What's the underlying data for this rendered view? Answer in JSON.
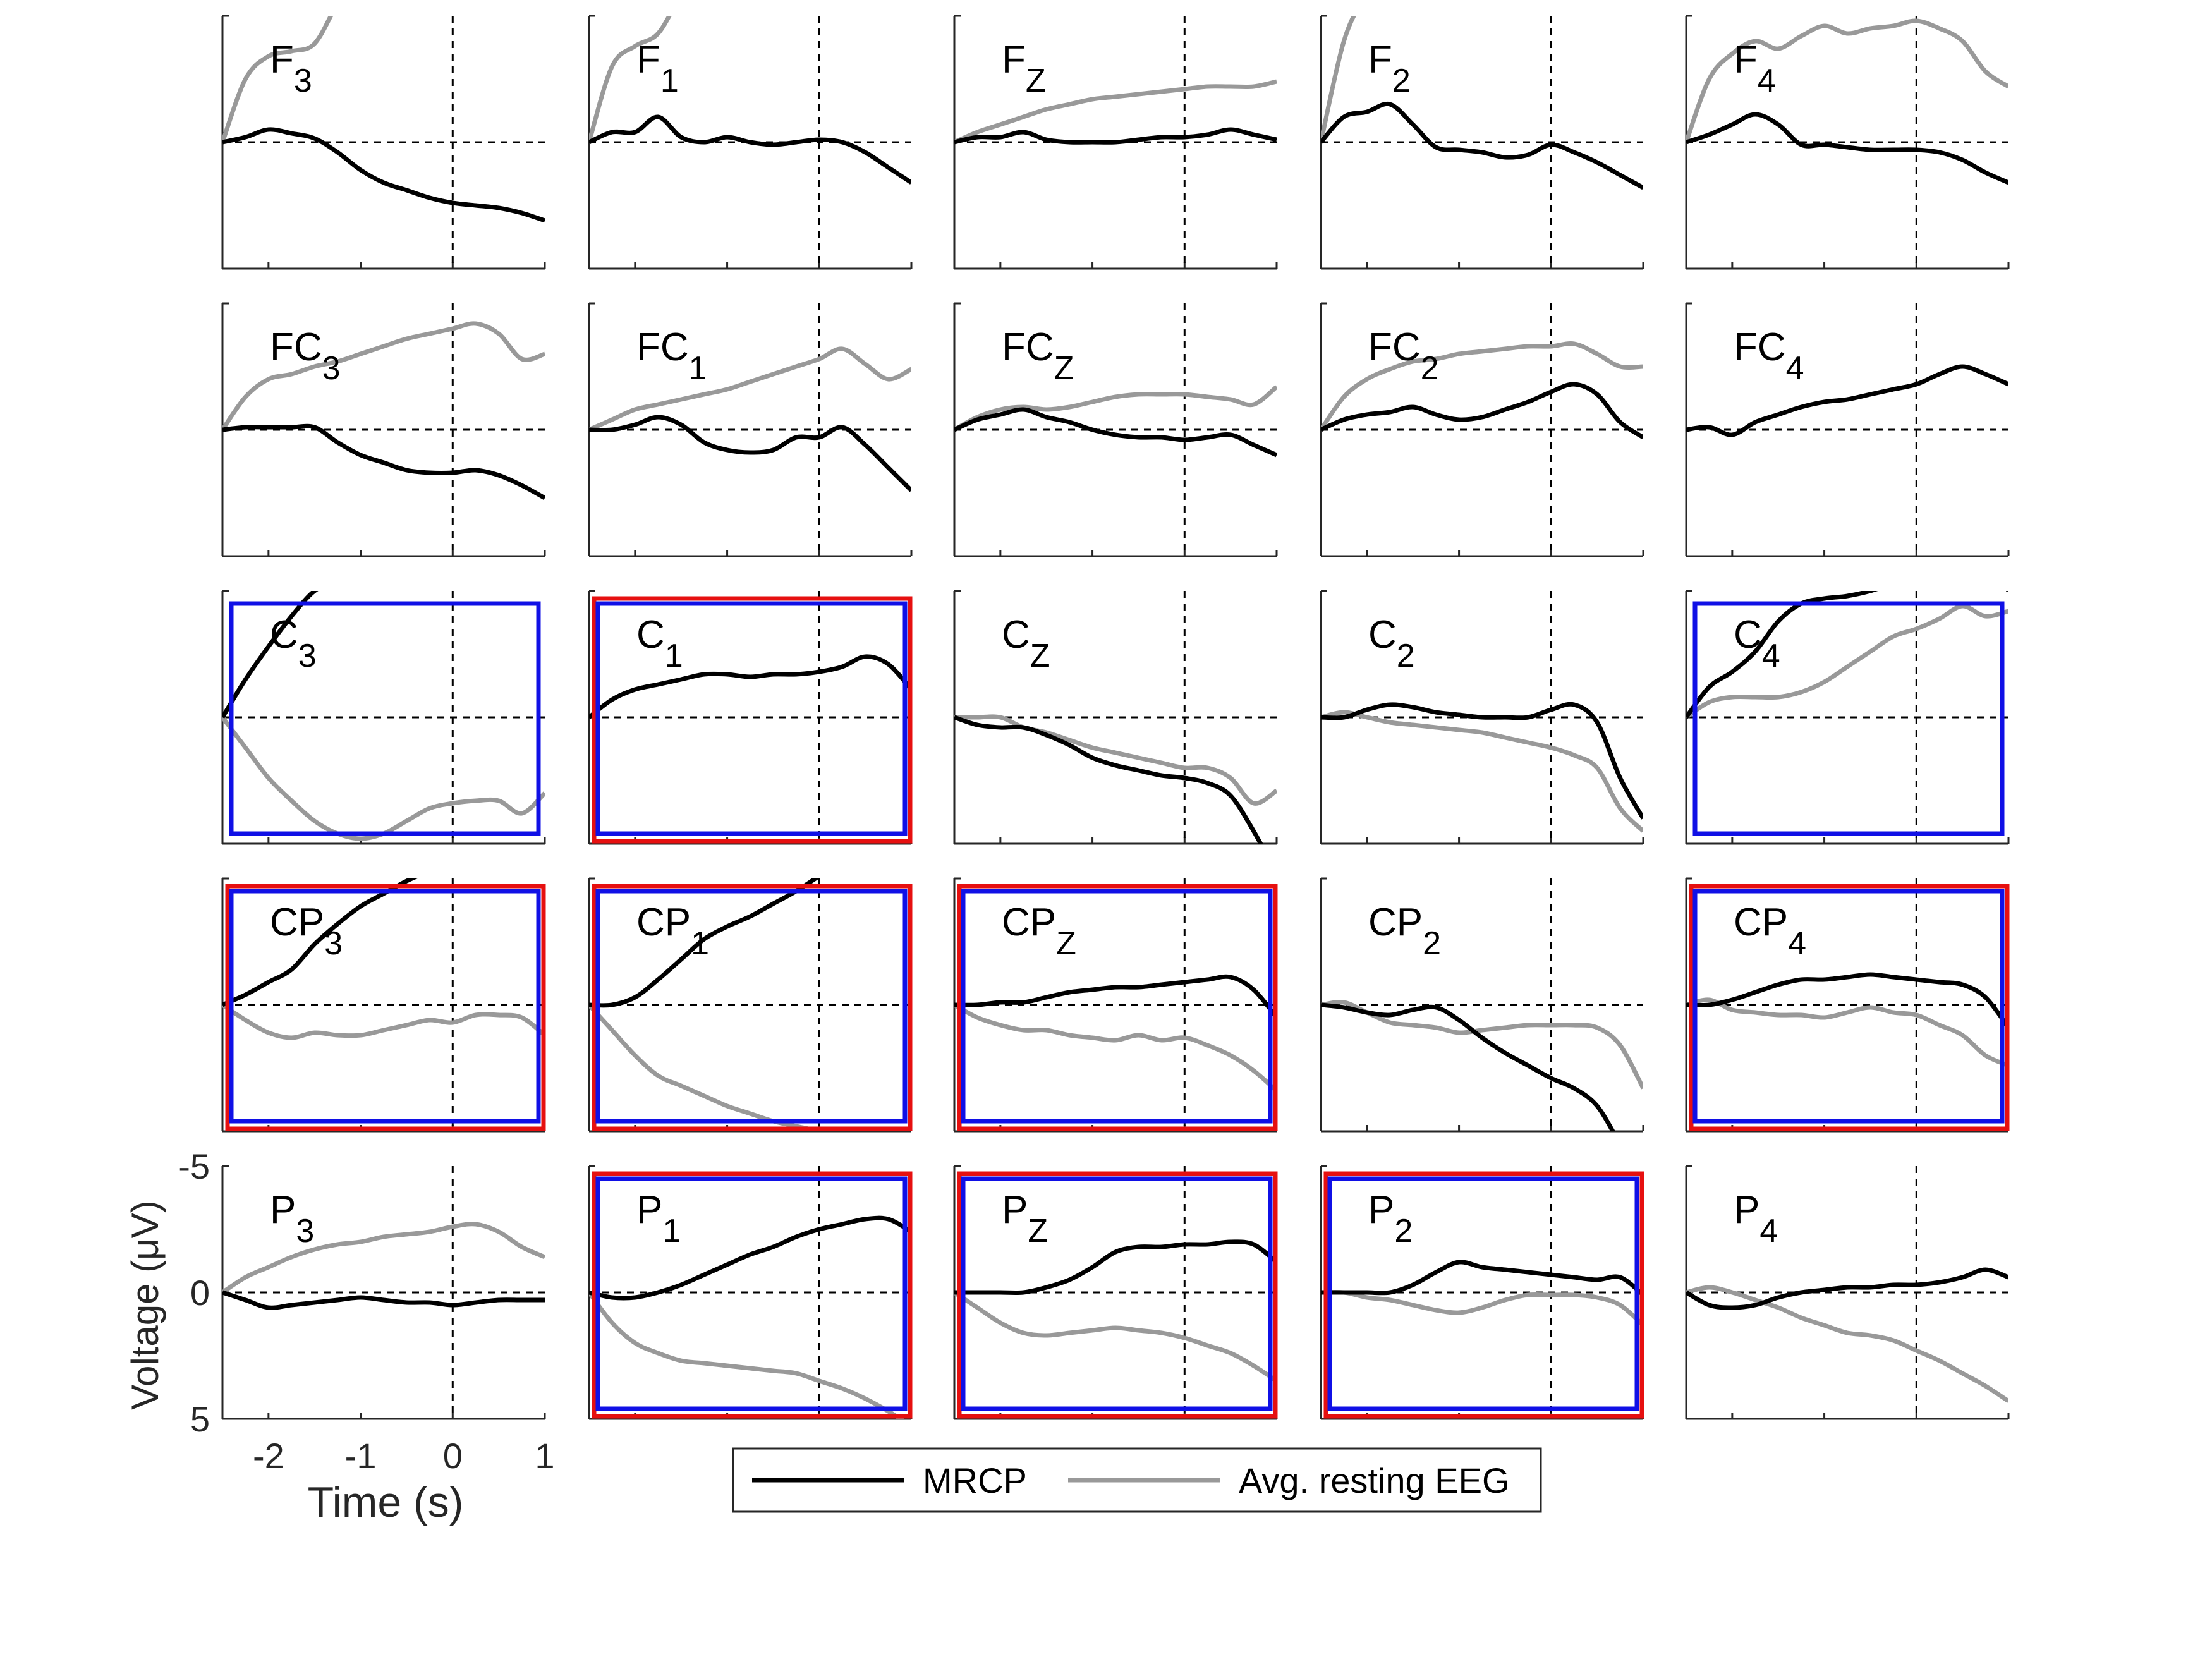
{
  "figure": {
    "time_label": "Time (s)",
    "voltage_label": "Voltage (μV)",
    "x_ticks": [
      "-2",
      "-1",
      "0",
      "1"
    ],
    "y_ticks": [
      "-5",
      "0",
      "5"
    ],
    "legend": [
      "MRCP",
      "Avg. resting EEG"
    ]
  },
  "chart_data": {
    "type": "line",
    "layout": "5x5 grid of small-multiple panels (one per electrode)",
    "x": [
      -2.5,
      -2.25,
      -2.0,
      -1.75,
      -1.5,
      -1.25,
      -1.0,
      -0.75,
      -0.5,
      -0.25,
      0.0,
      0.25,
      0.5,
      0.75,
      1.0
    ],
    "xlabel": "Time (s)",
    "ylabel": "Voltage (μV)",
    "xlim": [
      -2.5,
      1
    ],
    "ylim": [
      5,
      -5
    ],
    "y_axis_reversed": true,
    "x_ticks": [
      -2,
      -1,
      0,
      1
    ],
    "y_ticks": [
      -5,
      0,
      5
    ],
    "reference_lines": {
      "x": 0,
      "y": 0,
      "style": "dashed"
    },
    "legend": {
      "position": "bottom",
      "entries": [
        "MRCP",
        "Avg. resting EEG"
      ]
    },
    "colors": {
      "MRCP": "#000000",
      "Avg. resting EEG": "#999999",
      "box_blue": "#1010e6",
      "box_red": "#e61010"
    },
    "panels": [
      {
        "base": "F",
        "sub": "3",
        "blue": false,
        "red": false,
        "mrcp": [
          0,
          -0.2,
          -0.5,
          -0.35,
          -0.15,
          0.4,
          1.1,
          1.6,
          1.9,
          2.2,
          2.4,
          2.5,
          2.6,
          2.8,
          3.1
        ],
        "rest": [
          0,
          -2.5,
          -3.4,
          -3.6,
          -3.9,
          -5.5,
          -7,
          -8,
          -9,
          -10,
          -11,
          -11.5,
          -12,
          -12.5,
          -13
        ]
      },
      {
        "base": "F",
        "sub": "1",
        "blue": false,
        "red": false,
        "mrcp": [
          0,
          -0.4,
          -0.4,
          -1.0,
          -0.2,
          0,
          -0.2,
          0,
          0.1,
          0,
          -0.1,
          0,
          0.4,
          1.0,
          1.6
        ],
        "rest": [
          0,
          -3,
          -3.8,
          -4.3,
          -5.8,
          -6.8,
          -8,
          -9,
          -10,
          -11,
          -12,
          -12.5,
          -13,
          -13.5,
          -14
        ]
      },
      {
        "base": "F",
        "sub": "Z",
        "blue": false,
        "red": false,
        "mrcp": [
          0,
          -0.2,
          -0.2,
          -0.4,
          -0.1,
          0,
          0,
          0,
          -0.1,
          -0.2,
          -0.2,
          -0.3,
          -0.5,
          -0.3,
          -0.1
        ],
        "rest": [
          0,
          -0.4,
          -0.7,
          -1.0,
          -1.3,
          -1.5,
          -1.7,
          -1.8,
          -1.9,
          -2.0,
          -2.1,
          -2.2,
          -2.2,
          -2.2,
          -2.4
        ]
      },
      {
        "base": "F",
        "sub": "2",
        "blue": false,
        "red": false,
        "mrcp": [
          0,
          -1.0,
          -1.2,
          -1.5,
          -0.7,
          0.2,
          0.3,
          0.4,
          0.6,
          0.5,
          0.1,
          0.4,
          0.8,
          1.3,
          1.8
        ],
        "rest": [
          0,
          -4,
          -6,
          -8,
          -9,
          -10,
          -11,
          -12,
          -12,
          -12,
          -12,
          -12,
          -12,
          -12,
          -12
        ]
      },
      {
        "base": "F",
        "sub": "4",
        "blue": false,
        "red": false,
        "mrcp": [
          0,
          -0.3,
          -0.7,
          -1.1,
          -0.7,
          0.1,
          0.1,
          0.2,
          0.3,
          0.3,
          0.3,
          0.4,
          0.7,
          1.2,
          1.6
        ],
        "rest": [
          0,
          -2.5,
          -3.5,
          -4.0,
          -3.7,
          -4.2,
          -4.6,
          -4.3,
          -4.5,
          -4.6,
          -4.8,
          -4.5,
          -4.0,
          -2.8,
          -2.2
        ]
      },
      {
        "base": "FC",
        "sub": "3",
        "blue": false,
        "red": false,
        "mrcp": [
          0,
          -0.1,
          -0.1,
          -0.1,
          -0.1,
          0.5,
          1.0,
          1.3,
          1.6,
          1.7,
          1.7,
          1.6,
          1.8,
          2.2,
          2.7
        ],
        "rest": [
          0,
          -1.3,
          -2.0,
          -2.2,
          -2.5,
          -2.7,
          -3.0,
          -3.3,
          -3.6,
          -3.8,
          -4.0,
          -4.2,
          -3.8,
          -2.8,
          -3.0
        ]
      },
      {
        "base": "FC",
        "sub": "1",
        "blue": false,
        "red": false,
        "mrcp": [
          0,
          0,
          -0.2,
          -0.5,
          -0.2,
          0.5,
          0.8,
          0.9,
          0.8,
          0.3,
          0.3,
          -0.1,
          0.6,
          1.5,
          2.4
        ],
        "rest": [
          0,
          -0.4,
          -0.8,
          -1.0,
          -1.2,
          -1.4,
          -1.6,
          -1.9,
          -2.2,
          -2.5,
          -2.8,
          -3.2,
          -2.6,
          -2.0,
          -2.4
        ]
      },
      {
        "base": "FC",
        "sub": "Z",
        "blue": false,
        "red": false,
        "mrcp": [
          0,
          -0.4,
          -0.6,
          -0.8,
          -0.5,
          -0.3,
          0,
          0.2,
          0.3,
          0.3,
          0.4,
          0.3,
          0.2,
          0.6,
          1.0
        ],
        "rest": [
          0,
          -0.5,
          -0.8,
          -0.9,
          -0.8,
          -0.9,
          -1.1,
          -1.3,
          -1.4,
          -1.4,
          -1.4,
          -1.3,
          -1.2,
          -1.0,
          -1.7
        ]
      },
      {
        "base": "FC",
        "sub": "2",
        "blue": false,
        "red": false,
        "mrcp": [
          0,
          -0.4,
          -0.6,
          -0.7,
          -0.9,
          -0.6,
          -0.4,
          -0.5,
          -0.8,
          -1.1,
          -1.5,
          -1.8,
          -1.4,
          -0.3,
          0.3
        ],
        "rest": [
          0,
          -1.3,
          -2.0,
          -2.4,
          -2.7,
          -2.8,
          -3.0,
          -3.1,
          -3.2,
          -3.3,
          -3.3,
          -3.4,
          -3.0,
          -2.5,
          -2.5
        ]
      },
      {
        "base": "FC",
        "sub": "4",
        "blue": false,
        "red": false,
        "mrcp": [
          0,
          -0.1,
          0.2,
          -0.3,
          -0.6,
          -0.9,
          -1.1,
          -1.2,
          -1.4,
          -1.6,
          -1.8,
          -2.2,
          -2.5,
          -2.2,
          -1.8
        ]
      },
      {
        "base": "C",
        "sub": "3",
        "blue": true,
        "red": false,
        "mrcp": [
          0,
          -1.5,
          -2.8,
          -4.0,
          -5.0,
          -5.4,
          -5.3,
          -5.3,
          -5.6,
          -6.0,
          -6.4,
          -6.8,
          -7.1,
          -6.7,
          -5.8
        ],
        "rest": [
          0,
          1.2,
          2.4,
          3.3,
          4.1,
          4.6,
          4.8,
          4.6,
          4.1,
          3.6,
          3.4,
          3.3,
          3.3,
          3.8,
          3.0
        ]
      },
      {
        "base": "C",
        "sub": "1",
        "blue": true,
        "red": true,
        "mrcp": [
          0,
          -0.7,
          -1.1,
          -1.3,
          -1.5,
          -1.7,
          -1.7,
          -1.6,
          -1.7,
          -1.7,
          -1.8,
          -2.0,
          -2.4,
          -2.1,
          -1.1
        ]
      },
      {
        "base": "C",
        "sub": "Z",
        "blue": false,
        "red": false,
        "mrcp": [
          0,
          0.3,
          0.4,
          0.4,
          0.7,
          1.1,
          1.6,
          1.9,
          2.1,
          2.3,
          2.4,
          2.6,
          3.1,
          4.5,
          6.2
        ],
        "rest": [
          0,
          0,
          0,
          0.4,
          0.6,
          0.9,
          1.2,
          1.4,
          1.6,
          1.8,
          2.0,
          2.0,
          2.4,
          3.4,
          2.9
        ]
      },
      {
        "base": "C",
        "sub": "2",
        "blue": false,
        "red": false,
        "mrcp": [
          0,
          0,
          -0.3,
          -0.5,
          -0.4,
          -0.2,
          -0.1,
          0,
          0,
          0,
          -0.3,
          -0.5,
          0.2,
          2.4,
          4.0
        ],
        "rest": [
          0,
          -0.2,
          0,
          0.2,
          0.3,
          0.4,
          0.5,
          0.6,
          0.8,
          1.0,
          1.2,
          1.5,
          2.0,
          3.6,
          4.5
        ]
      },
      {
        "base": "C",
        "sub": "4",
        "blue": true,
        "red": false,
        "mrcp": [
          0,
          -1.2,
          -1.8,
          -2.6,
          -3.8,
          -4.5,
          -4.7,
          -4.8,
          -5.0,
          -5.3,
          -5.6,
          -6.2,
          -6.8,
          -6.5,
          -5.0
        ],
        "rest": [
          0,
          -0.6,
          -0.8,
          -0.8,
          -0.8,
          -1.0,
          -1.4,
          -2.0,
          -2.6,
          -3.2,
          -3.5,
          -3.9,
          -4.4,
          -4.0,
          -4.2
        ]
      },
      {
        "base": "CP",
        "sub": "3",
        "blue": true,
        "red": true,
        "mrcp": [
          0,
          -0.4,
          -0.9,
          -1.4,
          -2.4,
          -3.2,
          -3.9,
          -4.4,
          -4.9,
          -5.3,
          -5.7,
          -6.0,
          -6.2,
          -6.2,
          -6.0
        ],
        "rest": [
          0,
          0.6,
          1.1,
          1.3,
          1.1,
          1.2,
          1.2,
          1.0,
          0.8,
          0.6,
          0.7,
          0.4,
          0.4,
          0.5,
          1.2
        ]
      },
      {
        "base": "CP",
        "sub": "1",
        "blue": true,
        "red": true,
        "mrcp": [
          0,
          0,
          -0.3,
          -1.0,
          -1.8,
          -2.6,
          -3.1,
          -3.5,
          -4.0,
          -4.5,
          -5.1,
          -5.7,
          -6.3,
          -6.5,
          -6.0
        ],
        "rest": [
          0,
          1.0,
          2.0,
          2.8,
          3.2,
          3.6,
          4.0,
          4.3,
          4.6,
          4.8,
          5.0,
          5.3,
          5.6,
          6.0,
          6.1
        ]
      },
      {
        "base": "CP",
        "sub": "Z",
        "blue": true,
        "red": true,
        "mrcp": [
          0,
          0,
          -0.1,
          -0.1,
          -0.3,
          -0.5,
          -0.6,
          -0.7,
          -0.7,
          -0.8,
          -0.9,
          -1.0,
          -1.1,
          -0.6,
          0.5
        ],
        "rest": [
          0,
          0.5,
          0.8,
          1.0,
          1.0,
          1.2,
          1.3,
          1.4,
          1.2,
          1.4,
          1.3,
          1.6,
          2.0,
          2.6,
          3.4
        ]
      },
      {
        "base": "CP",
        "sub": "2",
        "blue": false,
        "red": false,
        "mrcp": [
          0,
          0.1,
          0.3,
          0.4,
          0.2,
          0.1,
          0.6,
          1.3,
          1.9,
          2.4,
          2.9,
          3.3,
          4.0,
          5.5,
          6.9
        ],
        "rest": [
          0,
          -0.1,
          0.3,
          0.7,
          0.8,
          0.9,
          1.1,
          1.0,
          0.9,
          0.8,
          0.8,
          0.8,
          0.9,
          1.6,
          3.3
        ]
      },
      {
        "base": "CP",
        "sub": "4",
        "blue": true,
        "red": true,
        "mrcp": [
          0,
          0,
          -0.2,
          -0.5,
          -0.8,
          -1.0,
          -1.0,
          -1.1,
          -1.2,
          -1.1,
          -1.0,
          -0.9,
          -0.8,
          -0.3,
          0.9
        ],
        "rest": [
          0,
          -0.2,
          0.2,
          0.3,
          0.4,
          0.4,
          0.5,
          0.3,
          0.1,
          0.3,
          0.4,
          0.8,
          1.2,
          2.0,
          2.4
        ]
      },
      {
        "base": "P",
        "sub": "3",
        "blue": false,
        "red": false,
        "mrcp": [
          0,
          0.3,
          0.6,
          0.5,
          0.4,
          0.3,
          0.2,
          0.3,
          0.4,
          0.4,
          0.5,
          0.4,
          0.3,
          0.3,
          0.3
        ],
        "rest": [
          0,
          -0.6,
          -1.0,
          -1.4,
          -1.7,
          -1.9,
          -2.0,
          -2.2,
          -2.3,
          -2.4,
          -2.6,
          -2.7,
          -2.4,
          -1.8,
          -1.4
        ]
      },
      {
        "base": "P",
        "sub": "1",
        "blue": true,
        "red": true,
        "mrcp": [
          0,
          0.2,
          0.2,
          0,
          -0.3,
          -0.7,
          -1.1,
          -1.5,
          -1.8,
          -2.2,
          -2.5,
          -2.7,
          -2.9,
          -2.9,
          -2.4
        ],
        "rest": [
          0,
          1.2,
          2.0,
          2.4,
          2.7,
          2.8,
          2.9,
          3.0,
          3.1,
          3.2,
          3.5,
          3.8,
          4.2,
          4.7,
          5.3
        ]
      },
      {
        "base": "P",
        "sub": "Z",
        "blue": true,
        "red": true,
        "mrcp": [
          0,
          0,
          0,
          0,
          -0.2,
          -0.5,
          -1.0,
          -1.6,
          -1.8,
          -1.8,
          -1.9,
          -1.9,
          -2.0,
          -1.9,
          -1.2
        ],
        "rest": [
          0,
          0.6,
          1.2,
          1.6,
          1.7,
          1.6,
          1.5,
          1.4,
          1.5,
          1.6,
          1.8,
          2.1,
          2.4,
          2.9,
          3.5
        ]
      },
      {
        "base": "P",
        "sub": "2",
        "blue": true,
        "red": true,
        "mrcp": [
          0,
          0,
          0,
          0,
          -0.3,
          -0.8,
          -1.2,
          -1.0,
          -0.9,
          -0.8,
          -0.7,
          -0.6,
          -0.5,
          -0.6,
          0.1
        ],
        "rest": [
          0,
          0,
          0.2,
          0.3,
          0.5,
          0.7,
          0.8,
          0.6,
          0.3,
          0.1,
          0.1,
          0.1,
          0.2,
          0.5,
          1.3
        ]
      },
      {
        "base": "P",
        "sub": "4",
        "blue": false,
        "red": false,
        "mrcp": [
          0,
          0.5,
          0.6,
          0.5,
          0.2,
          0,
          -0.1,
          -0.2,
          -0.2,
          -0.3,
          -0.3,
          -0.4,
          -0.6,
          -0.9,
          -0.6
        ],
        "rest": [
          0,
          -0.2,
          0,
          0.3,
          0.6,
          1.0,
          1.3,
          1.6,
          1.7,
          1.9,
          2.3,
          2.7,
          3.2,
          3.7,
          4.3
        ]
      }
    ]
  }
}
